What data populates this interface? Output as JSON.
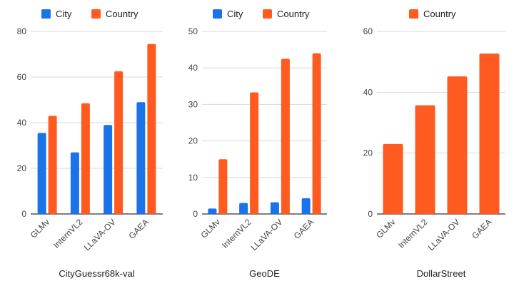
{
  "colors": {
    "City": "#1a73e8",
    "Country": "#ff5a1f",
    "grid": "#d9d9d9",
    "axis": "#333333"
  },
  "chart_data": [
    {
      "type": "bar",
      "xlabel": "CityGuessr68k-val",
      "categories": [
        "GLMv",
        "InternVL2",
        "LLaVA-OV",
        "GAEA"
      ],
      "series": [
        {
          "name": "City",
          "values": [
            35.5,
            27,
            39,
            49
          ]
        },
        {
          "name": "Country",
          "values": [
            43,
            48.5,
            62.5,
            74.5
          ]
        }
      ],
      "ylim": [
        0,
        80
      ],
      "yticks": [
        0,
        20,
        40,
        60,
        80
      ],
      "grid": true,
      "legend": "top"
    },
    {
      "type": "bar",
      "xlabel": "GeoDE",
      "categories": [
        "GLMv",
        "InternVL2",
        "LLaVA-OV",
        "GAEA"
      ],
      "series": [
        {
          "name": "City",
          "values": [
            1.5,
            3,
            3.2,
            4.3
          ]
        },
        {
          "name": "Country",
          "values": [
            15,
            33.3,
            42.5,
            44
          ]
        }
      ],
      "ylim": [
        0,
        50
      ],
      "yticks": [
        0,
        10,
        20,
        30,
        40,
        50
      ],
      "grid": true,
      "legend": "top"
    },
    {
      "type": "bar",
      "xlabel": "DollarStreet",
      "categories": [
        "GLMv",
        "InternVL2",
        "LLaVA-OV",
        "GAEA"
      ],
      "series": [
        {
          "name": "Country",
          "values": [
            23,
            35.7,
            45.2,
            52.7
          ]
        }
      ],
      "ylim": [
        0,
        60
      ],
      "yticks": [
        0,
        20,
        40,
        60
      ],
      "grid": true,
      "legend": "top"
    }
  ]
}
